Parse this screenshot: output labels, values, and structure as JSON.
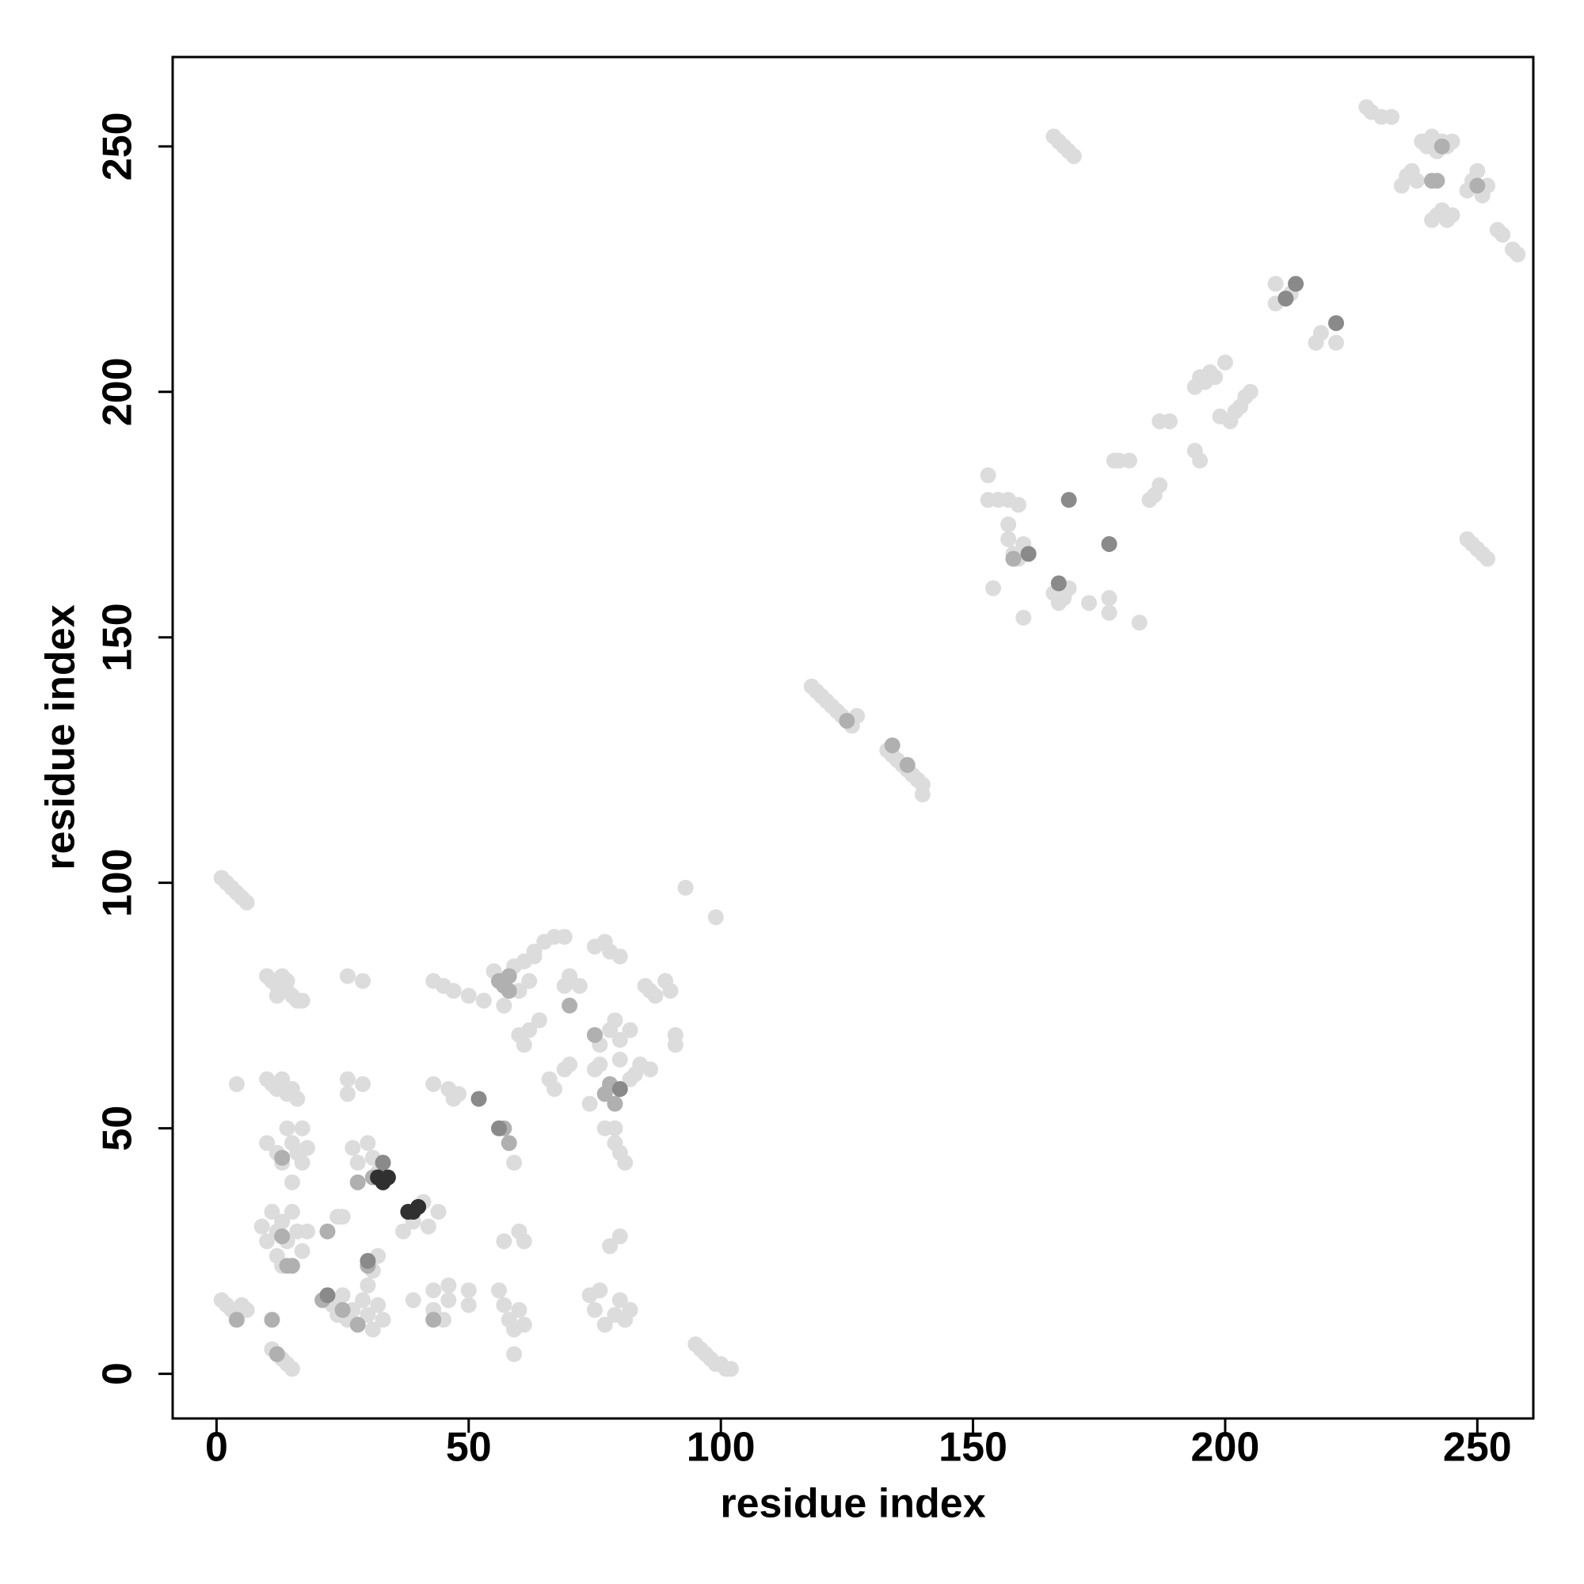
{
  "chart_data": {
    "type": "scatter",
    "x_label": "residue index",
    "y_label": "residue index",
    "xlim": [
      -8.7,
      261.1
    ],
    "ylim": [
      -9.1,
      268.2
    ],
    "xticks": [
      0,
      50,
      100,
      150,
      200,
      250
    ],
    "yticks": [
      0,
      50,
      100,
      150,
      200,
      250
    ],
    "series": [
      {
        "color": "#dcdcdc",
        "x": [
          1,
          2,
          3,
          4,
          5,
          6,
          10,
          11,
          12,
          13,
          14,
          15,
          16,
          17,
          12,
          14,
          10,
          11,
          12,
          13,
          14,
          15,
          16,
          4,
          10,
          12,
          13,
          15,
          16,
          17,
          18,
          14,
          17,
          15,
          9,
          10,
          11,
          12,
          13,
          14,
          15,
          16,
          17,
          18,
          12,
          13,
          1,
          2,
          3,
          4,
          5,
          6,
          11,
          12,
          13,
          14,
          15,
          23,
          24,
          25,
          26,
          27,
          28,
          29,
          30,
          31,
          32,
          33,
          26,
          26,
          29,
          26,
          29,
          27,
          28,
          30,
          31,
          32,
          25,
          24,
          37,
          39,
          41,
          42,
          44,
          31,
          32,
          30,
          39,
          43,
          43,
          45,
          46,
          46,
          50,
          50,
          43,
          46,
          47,
          48,
          43,
          45,
          47,
          50,
          53,
          55,
          57,
          59,
          60,
          61,
          62,
          63,
          56,
          57,
          58,
          59,
          60,
          61,
          57,
          60,
          61,
          59,
          59,
          60,
          61,
          62,
          64,
          63,
          65,
          67,
          69,
          66,
          67,
          69,
          70,
          69,
          70,
          72,
          74,
          75,
          76,
          80,
          82,
          83,
          84,
          86,
          76,
          78,
          79,
          80,
          82,
          75,
          77,
          78,
          80,
          74,
          75,
          76,
          77,
          79,
          80,
          81,
          82,
          78,
          80,
          79,
          80,
          81,
          77,
          79,
          85,
          86,
          87,
          89,
          90,
          91,
          91,
          93,
          99,
          95,
          96,
          97,
          98,
          99,
          100,
          101,
          102,
          118,
          119,
          120,
          121,
          122,
          123,
          124,
          125,
          126,
          127,
          133,
          134,
          135,
          136,
          137,
          138,
          139,
          140,
          140,
          153,
          153,
          155,
          157,
          159,
          157,
          157,
          158,
          159,
          160,
          154,
          160,
          166,
          167,
          168,
          169,
          177,
          177,
          173,
          183,
          166,
          167,
          168,
          169,
          170,
          178,
          179,
          181,
          185,
          186,
          187,
          187,
          189,
          194,
          195,
          194,
          195,
          196,
          197,
          198,
          200,
          199,
          201,
          202,
          203,
          204,
          205,
          210,
          210,
          213,
          218,
          219,
          222,
          228,
          229,
          231,
          233,
          235,
          236,
          237,
          238,
          239,
          240,
          241,
          242,
          243,
          244,
          245,
          241,
          242,
          243,
          244,
          245,
          248,
          249,
          250,
          251,
          252,
          254,
          255,
          257,
          258,
          248,
          249,
          250,
          251,
          252
        ],
        "values": [
          101,
          100,
          99,
          98,
          97,
          96,
          81,
          80,
          79,
          81,
          78,
          77,
          76,
          76,
          77,
          80,
          60,
          59,
          58,
          60,
          57,
          58,
          56,
          59,
          47,
          45,
          43,
          47,
          45,
          43,
          46,
          50,
          50,
          39,
          30,
          27,
          33,
          29,
          31,
          27,
          33,
          29,
          25,
          29,
          24,
          22,
          15,
          14,
          13,
          12,
          14,
          13,
          5,
          4,
          3,
          2,
          1,
          14,
          12,
          16,
          11,
          13,
          10,
          15,
          12,
          9,
          14,
          11,
          60,
          57,
          59,
          81,
          80,
          46,
          43,
          47,
          44,
          41,
          32,
          32,
          29,
          31,
          35,
          30,
          33,
          21,
          24,
          18,
          15,
          17,
          13,
          11,
          15,
          18,
          17,
          14,
          59,
          58,
          56,
          57,
          80,
          79,
          78,
          77,
          76,
          82,
          75,
          83,
          78,
          84,
          80,
          85,
          17,
          14,
          11,
          9,
          13,
          10,
          27,
          29,
          27,
          43,
          4,
          69,
          67,
          70,
          72,
          86,
          88,
          89,
          89,
          60,
          58,
          62,
          63,
          79,
          81,
          79,
          55,
          62,
          63,
          64,
          60,
          61,
          63,
          62,
          67,
          70,
          72,
          68,
          70,
          87,
          88,
          86,
          85,
          16,
          13,
          17,
          10,
          12,
          15,
          11,
          13,
          26,
          28,
          47,
          45,
          43,
          50,
          50,
          79,
          78,
          77,
          80,
          78,
          69,
          67,
          99,
          93,
          6,
          5,
          4,
          3,
          2,
          2,
          1,
          1,
          140,
          139,
          138,
          137,
          136,
          135,
          134,
          133,
          132,
          134,
          127,
          126,
          125,
          124,
          123,
          122,
          121,
          120,
          118,
          183,
          178,
          178,
          178,
          177,
          173,
          170,
          167,
          166,
          169,
          160,
          154,
          159,
          157,
          158,
          160,
          158,
          155,
          157,
          153,
          252,
          251,
          250,
          249,
          248,
          186,
          186,
          186,
          178,
          179,
          181,
          194,
          194,
          188,
          186,
          201,
          203,
          202,
          204,
          203,
          206,
          195,
          194,
          196,
          197,
          199,
          200,
          218,
          222,
          220,
          210,
          212,
          210,
          258,
          257,
          256,
          256,
          242,
          244,
          245,
          243,
          251,
          250,
          252,
          249,
          251,
          250,
          251,
          235,
          236,
          237,
          235,
          236,
          241,
          243,
          245,
          240,
          242,
          233,
          232,
          229,
          228,
          170,
          169,
          168,
          167,
          166
        ]
      },
      {
        "color": "#b0b0b0",
        "x": [
          12,
          11,
          4,
          13,
          14,
          15,
          22,
          21,
          25,
          28,
          30,
          31,
          43,
          56,
          57,
          58,
          57,
          58,
          58,
          70,
          75,
          77,
          78,
          79,
          13,
          28,
          125,
          134,
          137,
          158,
          242,
          243,
          250,
          241
        ],
        "values": [
          4,
          11,
          11,
          28,
          22,
          22,
          29,
          15,
          13,
          10,
          22,
          40,
          11,
          80,
          79,
          81,
          50,
          47,
          78,
          75,
          69,
          57,
          59,
          55,
          44,
          39,
          133,
          128,
          124,
          166,
          243,
          250,
          242,
          243
        ]
      },
      {
        "color": "#8a8a8a",
        "x": [
          33,
          52,
          56,
          161,
          167,
          169,
          177,
          214,
          212,
          222,
          80,
          30,
          22
        ],
        "values": [
          43,
          56,
          50,
          167,
          161,
          178,
          169,
          222,
          219,
          214,
          58,
          23,
          16
        ]
      },
      {
        "color": "#303030",
        "x": [
          33,
          32,
          34,
          39,
          40,
          38
        ],
        "values": [
          39,
          40,
          40,
          33,
          34,
          33
        ]
      }
    ]
  }
}
